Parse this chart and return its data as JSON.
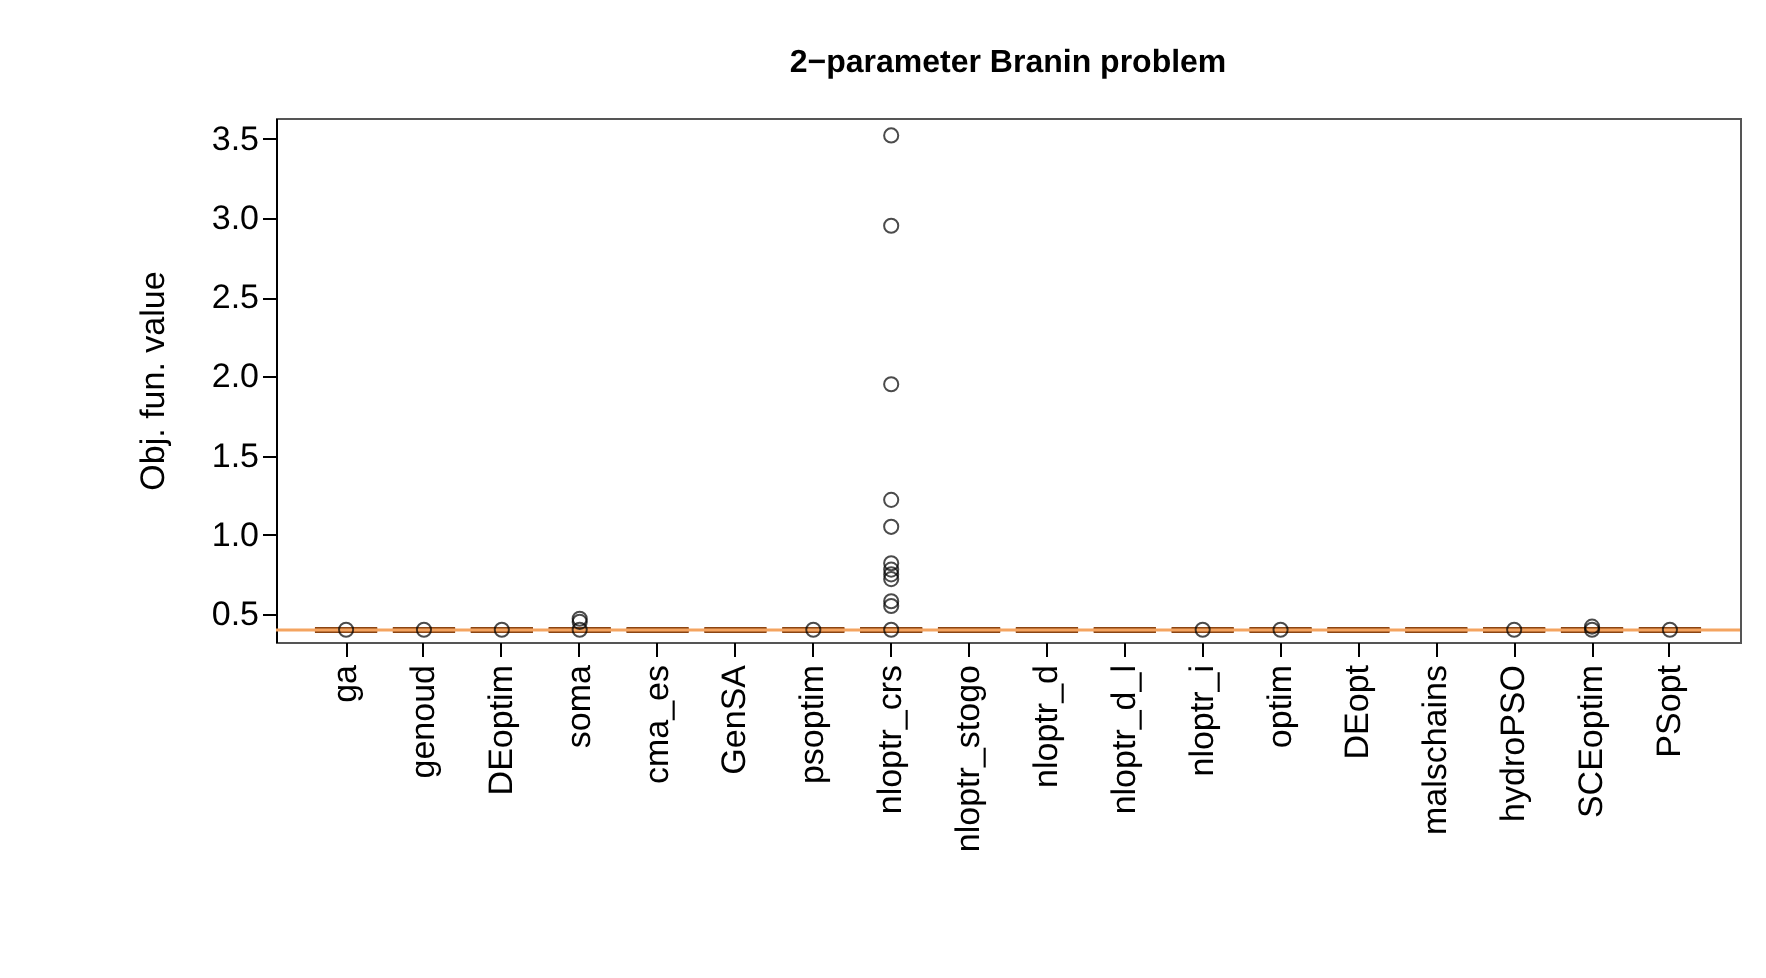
{
  "chart_data": {
    "type": "box",
    "title": "2−parameter Branin problem",
    "ylabel": "Obj. fun. value",
    "categories": [
      "ga",
      "genoud",
      "DEoptim",
      "soma",
      "cma_es",
      "GenSA",
      "psoptim",
      "nloptr_crs",
      "nloptr_stogo",
      "nloptr_d",
      "nloptr_d_l",
      "nloptr_i",
      "optim",
      "DEopt",
      "malschains",
      "hydroPSO",
      "SCEoptim",
      "PSopt"
    ],
    "series": [
      {
        "color": "#8b4513",
        "boxes": [
          {
            "low": 0.398,
            "q1": 0.398,
            "median": 0.398,
            "q3": 0.398,
            "high": 0.398,
            "outliers": [
              0.4
            ]
          },
          {
            "low": 0.398,
            "q1": 0.398,
            "median": 0.398,
            "q3": 0.398,
            "high": 0.398,
            "outliers": [
              0.4
            ]
          },
          {
            "low": 0.398,
            "q1": 0.398,
            "median": 0.398,
            "q3": 0.398,
            "high": 0.398,
            "outliers": [
              0.4
            ]
          },
          {
            "low": 0.398,
            "q1": 0.398,
            "median": 0.398,
            "q3": 0.398,
            "high": 0.398,
            "outliers": [
              0.4,
              0.45,
              0.47
            ]
          },
          {
            "low": 0.398,
            "q1": 0.398,
            "median": 0.398,
            "q3": 0.398,
            "high": 0.398
          },
          {
            "low": 0.398,
            "q1": 0.398,
            "median": 0.398,
            "q3": 0.398,
            "high": 0.398
          },
          {
            "low": 0.398,
            "q1": 0.398,
            "median": 0.398,
            "q3": 0.398,
            "high": 0.398,
            "outliers": [
              0.4
            ]
          },
          {
            "low": 0.398,
            "q1": 0.398,
            "median": 0.398,
            "q3": 0.398,
            "high": 0.398,
            "outliers": [
              0.4,
              0.55,
              0.58,
              0.72,
              0.75,
              0.78,
              0.82,
              1.05,
              1.22,
              1.95,
              2.95,
              3.52
            ]
          },
          {
            "low": 0.398,
            "q1": 0.398,
            "median": 0.398,
            "q3": 0.398,
            "high": 0.398
          },
          {
            "low": 0.398,
            "q1": 0.398,
            "median": 0.398,
            "q3": 0.398,
            "high": 0.398
          },
          {
            "low": 0.398,
            "q1": 0.398,
            "median": 0.398,
            "q3": 0.398,
            "high": 0.398
          },
          {
            "low": 0.398,
            "q1": 0.398,
            "median": 0.398,
            "q3": 0.398,
            "high": 0.398,
            "outliers": [
              0.4
            ]
          },
          {
            "low": 0.398,
            "q1": 0.398,
            "median": 0.398,
            "q3": 0.398,
            "high": 0.398,
            "outliers": [
              0.4
            ]
          },
          {
            "low": 0.398,
            "q1": 0.398,
            "median": 0.398,
            "q3": 0.398,
            "high": 0.398
          },
          {
            "low": 0.398,
            "q1": 0.398,
            "median": 0.398,
            "q3": 0.398,
            "high": 0.398
          },
          {
            "low": 0.398,
            "q1": 0.398,
            "median": 0.398,
            "q3": 0.398,
            "high": 0.398,
            "outliers": [
              0.4
            ]
          },
          {
            "low": 0.398,
            "q1": 0.398,
            "median": 0.398,
            "q3": 0.398,
            "high": 0.398,
            "outliers": [
              0.4,
              0.42
            ]
          },
          {
            "low": 0.398,
            "q1": 0.398,
            "median": 0.398,
            "q3": 0.398,
            "high": 0.398,
            "outliers": [
              0.4
            ]
          }
        ]
      }
    ],
    "ylim": [
      0.323,
      3.63
    ],
    "yticks": [
      0.5,
      {
        "value": 1,
        "label": "1.0"
      },
      1.5,
      {
        "value": 2,
        "label": "2.0"
      },
      2.5,
      {
        "value": 3,
        "label": "3.0"
      },
      3.5
    ],
    "ref_lines": [
      {
        "axis": "y",
        "value": 0.398,
        "color": "#f4a460"
      }
    ]
  }
}
